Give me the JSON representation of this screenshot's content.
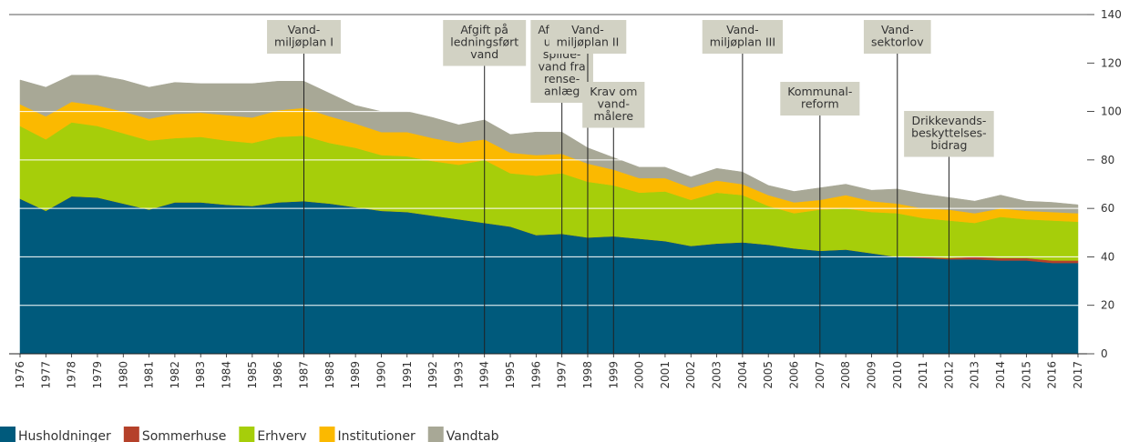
{
  "chart_data": {
    "type": "stacked-area",
    "categories": [
      "1976",
      "1977",
      "1978",
      "1979",
      "1980",
      "1981",
      "1982",
      "1983",
      "1984",
      "1985",
      "1986",
      "1987",
      "1988",
      "1989",
      "1990",
      "1991",
      "1992",
      "1993",
      "1994",
      "1995",
      "1996",
      "1997",
      "1998",
      "1999",
      "2000",
      "2001",
      "2002",
      "2003",
      "2004",
      "2005",
      "2006",
      "2007",
      "2008",
      "2009",
      "2010",
      "2011",
      "2012",
      "2013",
      "2014",
      "2015",
      "2016",
      "2017"
    ],
    "series": [
      {
        "name": "Husholdninger",
        "color": "#005a7c",
        "values": [
          64,
          59,
          65,
          64.5,
          62,
          59.5,
          62.5,
          62.5,
          61.5,
          61,
          62.5,
          63,
          62,
          60.5,
          59,
          58.5,
          57,
          55.5,
          54,
          52.5,
          49,
          49.5,
          48,
          48.5,
          47.5,
          46.5,
          44.5,
          45.5,
          46,
          45,
          43.5,
          42.5,
          43,
          41.5,
          40,
          39.5,
          39,
          39,
          38.5,
          38.5,
          37.5,
          37.5
        ]
      },
      {
        "name": "Sommerhuse",
        "color": "#b5412a",
        "values": [
          0,
          0,
          0,
          0,
          0,
          0,
          0,
          0,
          0,
          0,
          0,
          0,
          0,
          0,
          0,
          0,
          0,
          0,
          0,
          0,
          0,
          0,
          0,
          0,
          0,
          0,
          0,
          0,
          0,
          0,
          0,
          0,
          0,
          0,
          0,
          0.5,
          0.5,
          1,
          1,
          1,
          1,
          1
        ]
      },
      {
        "name": "Erhverv",
        "color": "#a6ce0a",
        "values": [
          30,
          29.5,
          30.5,
          29.5,
          29,
          28.5,
          26.5,
          27,
          26.5,
          26,
          27,
          27,
          25,
          24.5,
          23,
          23,
          22.5,
          22.5,
          26,
          22,
          24.5,
          25,
          23,
          21,
          19,
          20.5,
          19,
          21,
          19.5,
          16,
          14.5,
          17,
          17,
          17,
          18,
          16,
          15.5,
          14,
          17,
          16,
          16.5,
          16
        ]
      },
      {
        "name": "Institutioner",
        "color": "#fbb900",
        "values": [
          9,
          9.5,
          8.5,
          8.5,
          9,
          9,
          10,
          10,
          10.5,
          10.5,
          11,
          11.5,
          11,
          10,
          9.5,
          10,
          9.5,
          9,
          8.5,
          8.5,
          8.5,
          8,
          7.5,
          6.5,
          6,
          5.5,
          5,
          5,
          4.5,
          4.5,
          4.5,
          4,
          5.5,
          4.5,
          4,
          4,
          4.5,
          4,
          3.5,
          3.5,
          3.5,
          3.5
        ]
      },
      {
        "name": "Vandtab",
        "color": "#a8a896",
        "values": [
          10,
          12,
          11,
          12.5,
          13,
          13,
          13,
          12,
          13,
          14,
          12,
          11,
          9.5,
          7.5,
          8.5,
          8.5,
          8.5,
          7.5,
          8,
          7.5,
          9.5,
          9,
          6.5,
          5,
          4.5,
          4.5,
          4.5,
          5,
          5,
          4,
          4.5,
          5,
          4.5,
          4.5,
          6,
          6,
          5,
          5,
          5.5,
          4,
          4,
          3.5
        ]
      }
    ],
    "ylim": [
      0,
      140
    ],
    "yticks": [
      0,
      20,
      40,
      60,
      80,
      100,
      120,
      140
    ],
    "grid": true,
    "annotations": [
      {
        "x": "1987",
        "lines": [
          "Vand-",
          "miljøplan I"
        ]
      },
      {
        "x": "1994",
        "lines": [
          "Afgift på",
          "ledningsført",
          "vand"
        ]
      },
      {
        "x": "1997",
        "lines": [
          "Afgift på",
          "udledt",
          "spilde-",
          "vand fra",
          "rense-",
          "anlæg"
        ]
      },
      {
        "x": "1998",
        "lines": [
          "Vand-",
          "miljøplan II"
        ]
      },
      {
        "x": "1999",
        "lines": [
          "Krav om",
          "vand-",
          "målere"
        ]
      },
      {
        "x": "2004",
        "lines": [
          "Vand-",
          "miljøplan III"
        ]
      },
      {
        "x": "2007",
        "lines": [
          "Kommunal-",
          "reform"
        ]
      },
      {
        "x": "2010",
        "lines": [
          "Vand-",
          "sektorlov"
        ]
      },
      {
        "x": "2012",
        "lines": [
          "Drikkevands-",
          "beskyttelses-",
          "bidrag"
        ]
      }
    ]
  }
}
